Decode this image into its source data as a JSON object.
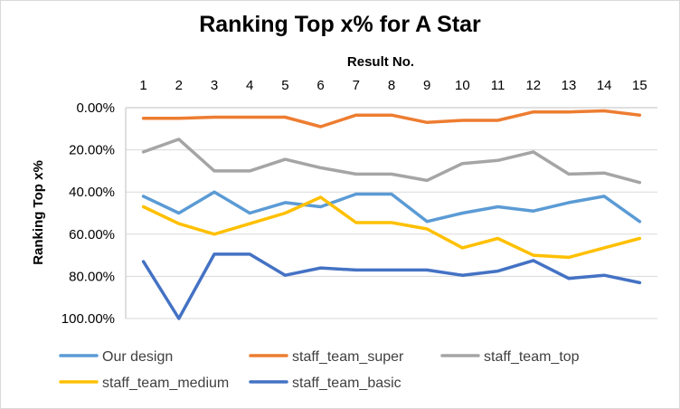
{
  "chart_data": {
    "type": "line",
    "title": "Ranking Top x% for A Star",
    "xlabel": "Result No.",
    "ylabel": "Ranking Top x%",
    "x": [
      1,
      2,
      3,
      4,
      5,
      6,
      7,
      8,
      9,
      10,
      11,
      12,
      13,
      14,
      15
    ],
    "x_axis_position": "top",
    "y_reversed": true,
    "ylim": [
      0,
      100
    ],
    "yticks": [
      "0.00%",
      "20.00%",
      "40.00%",
      "60.00%",
      "80.00%",
      "100.00%"
    ],
    "grid": "horizontal",
    "legend_position": "bottom",
    "series": [
      {
        "name": "Our design",
        "color": "#5b9bd5",
        "values": [
          42,
          50,
          40,
          50,
          45,
          47,
          41,
          41,
          54,
          50,
          47,
          49,
          45,
          42,
          54
        ]
      },
      {
        "name": "staff_team_super",
        "color": "#ed7d31",
        "values": [
          5,
          5,
          4.5,
          4.5,
          4.5,
          9,
          3.5,
          3.5,
          7,
          6,
          6,
          2,
          2,
          1.5,
          3.5
        ]
      },
      {
        "name": "staff_team_top",
        "color": "#a5a5a5",
        "values": [
          21,
          15,
          30,
          30,
          24.5,
          28.5,
          31.5,
          31.5,
          34.5,
          26.5,
          25,
          21,
          31.5,
          31,
          35.5
        ]
      },
      {
        "name": "staff_team_medium",
        "color": "#ffc000",
        "values": [
          47,
          55,
          60,
          55,
          50,
          42.5,
          54.5,
          54.5,
          57.5,
          66.5,
          62,
          70,
          71,
          66.5,
          62
        ]
      },
      {
        "name": "staff_team_basic",
        "color": "#4472c4",
        "values": [
          73,
          100,
          69.5,
          69.5,
          79.5,
          76,
          77,
          77,
          77,
          79.5,
          77.5,
          72.5,
          81,
          79.5,
          83
        ]
      }
    ]
  }
}
